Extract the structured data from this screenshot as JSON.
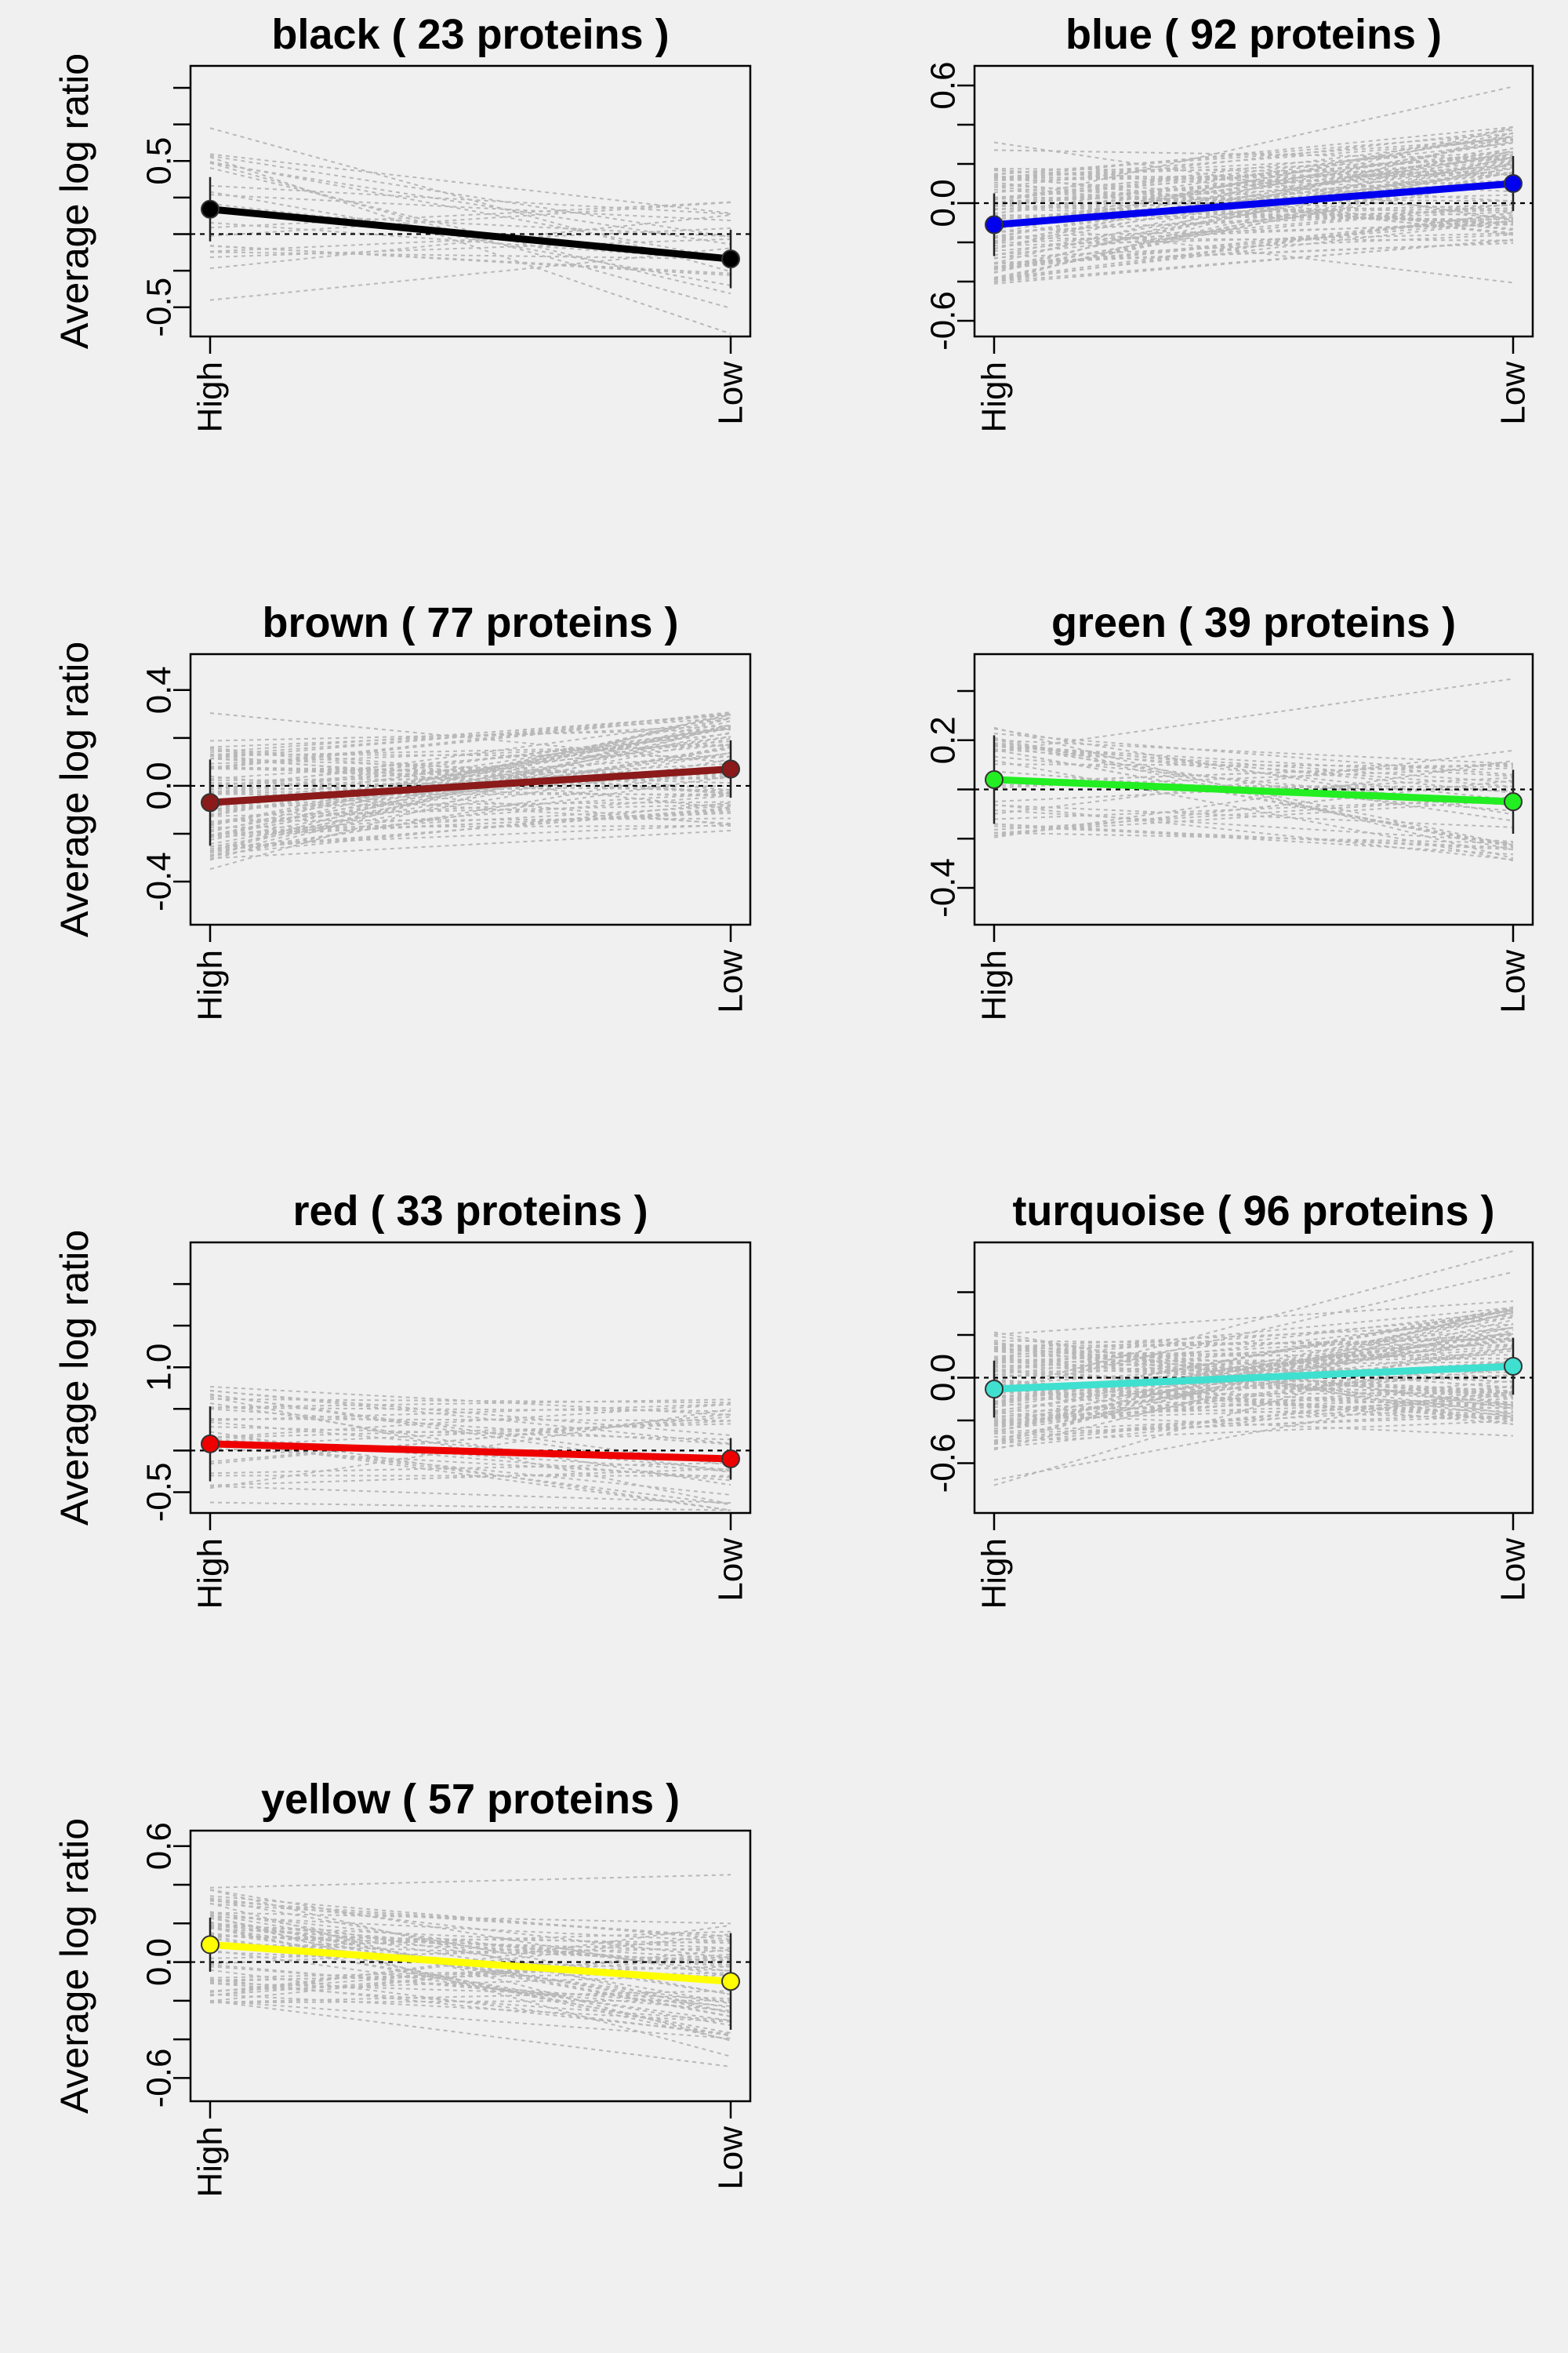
{
  "chart_data": [
    {
      "type": "line",
      "title": "black ( 23 proteins )",
      "ylabel": "Average log ratio",
      "xlabel": "",
      "categories": [
        "High",
        "Low"
      ],
      "ylim": [
        -0.7,
        1.15
      ],
      "ytick_values": [
        -0.5,
        -0.25,
        0.0,
        0.25,
        0.5,
        0.75,
        1.0
      ],
      "ytick_labels": [
        "-0.5",
        "",
        "",
        "",
        "0.5",
        "",
        ""
      ],
      "reference_lines": [
        0.0
      ],
      "grid": false,
      "color": "#000000",
      "series": [
        {
          "values": [
            0.17,
            -0.17
          ],
          "errors": [
            0.22,
            0.2
          ]
        }
      ]
    },
    {
      "type": "line",
      "title": "blue ( 92 proteins )",
      "ylabel": "Average log ratio",
      "xlabel": "",
      "categories": [
        "High",
        "Low"
      ],
      "ylim": [
        -0.68,
        0.7
      ],
      "ytick_values": [
        -0.6,
        -0.4,
        -0.2,
        0.0,
        0.2,
        0.4,
        0.6
      ],
      "ytick_labels": [
        "-0.6",
        "",
        "",
        "0.0",
        "",
        "",
        "0.6"
      ],
      "reference_lines": [
        0.0
      ],
      "grid": false,
      "color": "#0000ee",
      "series": [
        {
          "values": [
            -0.11,
            0.1
          ],
          "errors": [
            0.16,
            0.14
          ]
        }
      ]
    },
    {
      "type": "line",
      "title": "brown ( 77 proteins )",
      "ylabel": "Average log ratio",
      "xlabel": "",
      "categories": [
        "High",
        "Low"
      ],
      "ylim": [
        -0.58,
        0.55
      ],
      "ytick_values": [
        -0.4,
        -0.2,
        0.0,
        0.2,
        0.4
      ],
      "ytick_labels": [
        "-0.4",
        "",
        "0.0",
        "",
        "0.4"
      ],
      "reference_lines": [
        0.0
      ],
      "grid": false,
      "color": "#8b1a1a",
      "series": [
        {
          "values": [
            -0.07,
            0.07
          ],
          "errors": [
            0.18,
            0.12
          ]
        }
      ]
    },
    {
      "type": "line",
      "title": "green ( 39 proteins )",
      "ylabel": "Average log ratio",
      "xlabel": "",
      "categories": [
        "High",
        "Low"
      ],
      "ylim": [
        -0.55,
        0.55
      ],
      "ytick_values": [
        -0.4,
        -0.2,
        0.0,
        0.2,
        0.4
      ],
      "ytick_labels": [
        "-0.4",
        "",
        "",
        "0.2",
        ""
      ],
      "reference_lines": [
        0.0
      ],
      "grid": false,
      "color": "#22ee22",
      "series": [
        {
          "values": [
            0.04,
            -0.05
          ],
          "errors": [
            0.18,
            0.13
          ]
        }
      ]
    },
    {
      "type": "line",
      "title": "red ( 33 proteins )",
      "ylabel": "Average log ratio",
      "xlabel": "",
      "categories": [
        "High",
        "Low"
      ],
      "ylim": [
        -0.75,
        2.5
      ],
      "ytick_values": [
        -0.5,
        0.0,
        0.5,
        1.0,
        1.5,
        2.0
      ],
      "ytick_labels": [
        "-0.5",
        "",
        "",
        "1.0",
        "",
        ""
      ],
      "reference_lines": [
        0.0
      ],
      "grid": false,
      "color": "#ee0000",
      "series": [
        {
          "values": [
            0.08,
            -0.1
          ],
          "errors": [
            0.45,
            0.25
          ]
        }
      ]
    },
    {
      "type": "line",
      "title": "turquoise ( 96 proteins )",
      "ylabel": "Average log ratio",
      "xlabel": "",
      "categories": [
        "High",
        "Low"
      ],
      "ylim": [
        -0.95,
        0.95
      ],
      "ytick_values": [
        -0.6,
        -0.3,
        0.0,
        0.3,
        0.6
      ],
      "ytick_labels": [
        "-0.6",
        "",
        "0.0",
        "",
        ""
      ],
      "reference_lines": [
        0.0
      ],
      "grid": false,
      "color": "#40e0d0",
      "series": [
        {
          "values": [
            -0.08,
            0.08
          ],
          "errors": [
            0.2,
            0.2
          ]
        }
      ]
    },
    {
      "type": "line",
      "title": "yellow ( 57 proteins )",
      "ylabel": "Average log ratio",
      "xlabel": "",
      "categories": [
        "High",
        "Low"
      ],
      "ylim": [
        -0.72,
        0.68
      ],
      "ytick_values": [
        -0.6,
        -0.4,
        -0.2,
        0.0,
        0.2,
        0.4,
        0.6
      ],
      "ytick_labels": [
        "-0.6",
        "",
        "",
        "0.0",
        "",
        "",
        "0.6"
      ],
      "reference_lines": [
        0.0
      ],
      "grid": false,
      "color": "#ffff00",
      "series": [
        {
          "values": [
            0.09,
            -0.1
          ],
          "errors": [
            0.14,
            0.25
          ]
        }
      ]
    }
  ]
}
